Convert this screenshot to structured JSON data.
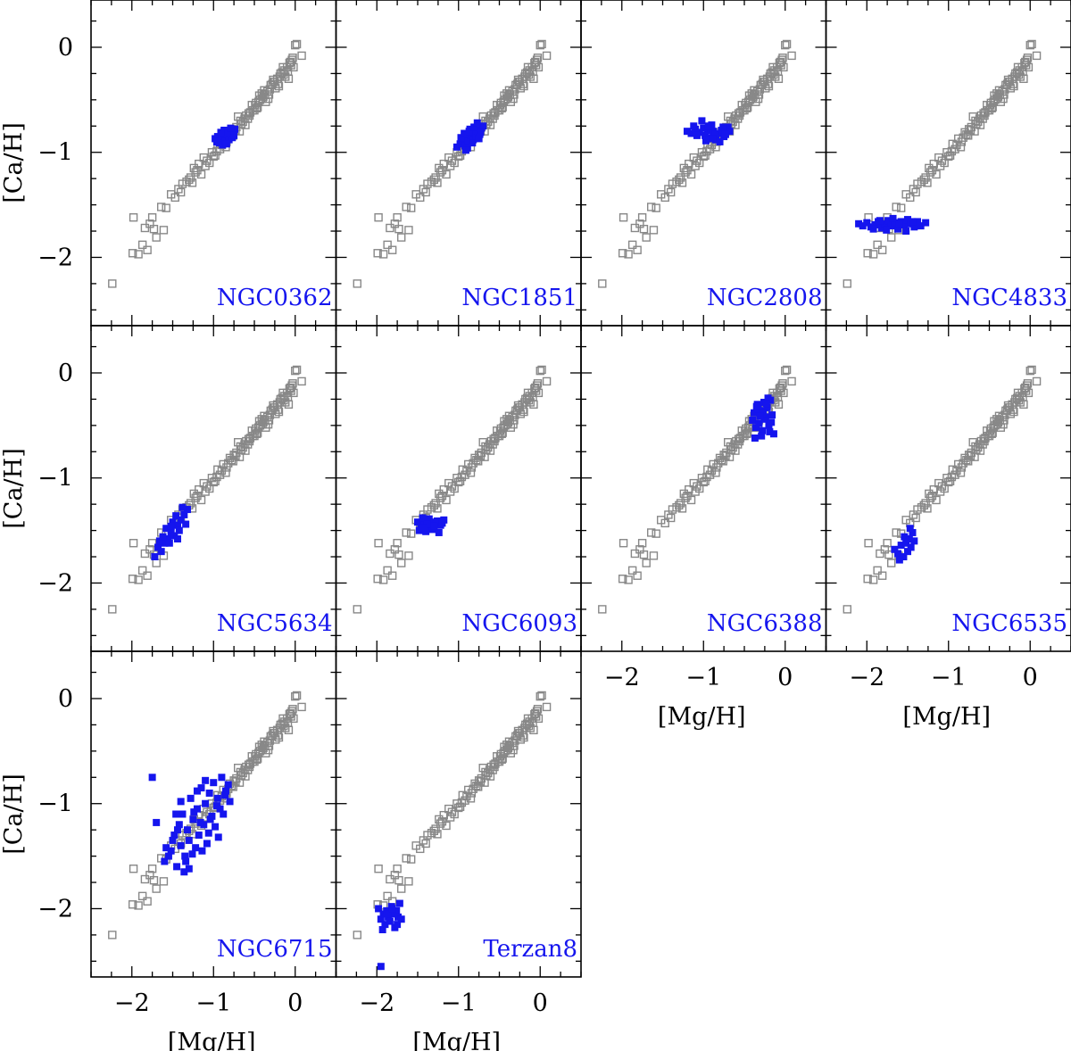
{
  "chart_data": {
    "type": "scatter",
    "layout": "grid 3 rows x 4 columns, shared axes",
    "xlabel": "[Mg/H]",
    "ylabel": "[Ca/H]",
    "xlim": [
      -2.5,
      0.5
    ],
    "ylim": [
      -2.65,
      0.45
    ],
    "xticks": [
      -2,
      -1,
      0
    ],
    "yticks": [
      0,
      -1,
      -2
    ],
    "tick_labels_x": [
      "−2",
      "−1",
      "0"
    ],
    "tick_labels_y": [
      "0",
      "−1",
      "−2"
    ],
    "colors": {
      "background": "#888888",
      "highlight": "#1515ee"
    },
    "background_series": {
      "marker": "open square",
      "x": [
        -2.24,
        -1.99,
        -1.92,
        -1.87,
        -1.81,
        -1.73,
        -1.7,
        -1.61,
        -1.78,
        -1.75,
        -1.84,
        -1.98,
        -1.64,
        -1.58,
        -1.52,
        -1.47,
        -1.43,
        -1.38,
        -1.33,
        -1.28,
        -1.24,
        -1.22,
        -1.18,
        -1.12,
        -1.08,
        -1.02,
        -0.98,
        -0.95,
        -0.92,
        -0.88,
        -0.84,
        -0.8,
        -0.76,
        -0.72,
        -0.68,
        -0.64,
        -0.61,
        -0.58,
        -0.55,
        -0.52,
        -0.49,
        -0.46,
        -0.43,
        -0.4,
        -0.37,
        -0.34,
        -0.31,
        -0.28,
        -0.25,
        -0.22,
        -0.19,
        -0.16,
        -0.13,
        -0.1,
        -0.07,
        -0.04,
        0.0,
        0.02,
        0.08,
        -1.15,
        -1.05,
        -0.9,
        -0.78,
        -0.7,
        -0.62,
        -0.5,
        -0.44,
        -0.36,
        -0.3,
        -0.24,
        -0.18,
        -0.12,
        -0.06,
        -0.02,
        -1.3,
        -1.2,
        -1.0,
        -0.85,
        -0.75,
        -0.66,
        -0.56,
        -0.47,
        -0.41,
        -0.33,
        -0.27,
        -0.21,
        -0.15,
        -0.09,
        -0.03,
        -0.6,
        -0.53,
        -0.45,
        -0.38,
        -0.32,
        -0.26,
        -0.2,
        -0.14,
        -0.08,
        -0.05,
        -1.4,
        -1.26,
        -1.1,
        -0.96,
        -0.82,
        -0.73,
        -0.67,
        -0.57,
        -0.48,
        -0.39
      ],
      "y": [
        -2.25,
        -1.96,
        -1.97,
        -1.88,
        -1.93,
        -1.73,
        -1.81,
        -1.74,
        -1.68,
        -1.62,
        -1.72,
        -1.62,
        -1.52,
        -1.53,
        -1.4,
        -1.43,
        -1.35,
        -1.3,
        -1.28,
        -1.24,
        -1.15,
        -1.19,
        -1.11,
        -1.05,
        -1.08,
        -1.0,
        -1.03,
        -0.92,
        -0.97,
        -0.87,
        -0.9,
        -0.81,
        -0.84,
        -0.76,
        -0.8,
        -0.71,
        -0.74,
        -0.68,
        -0.62,
        -0.6,
        -0.55,
        -0.57,
        -0.5,
        -0.49,
        -0.45,
        -0.42,
        -0.4,
        -0.35,
        -0.33,
        -0.3,
        -0.28,
        -0.24,
        -0.22,
        -0.19,
        -0.15,
        -0.12,
        0.02,
        0.03,
        -0.08,
        -1.21,
        -1.1,
        -0.93,
        -0.83,
        -0.66,
        -0.68,
        -0.6,
        -0.46,
        -0.52,
        -0.36,
        -0.39,
        -0.25,
        -0.28,
        -0.14,
        -0.19,
        -1.26,
        -1.17,
        -1.04,
        -0.95,
        -0.78,
        -0.73,
        -0.65,
        -0.58,
        -0.44,
        -0.49,
        -0.31,
        -0.35,
        -0.19,
        -0.23,
        -0.1,
        -0.65,
        -0.55,
        -0.52,
        -0.41,
        -0.45,
        -0.33,
        -0.37,
        -0.26,
        -0.3,
        -0.17,
        -1.38,
        -1.29,
        -1.13,
        -0.99,
        -0.86,
        -0.79,
        -0.7,
        -0.63,
        -0.53,
        -0.47
      ]
    },
    "panels": [
      {
        "label": "NGC0362",
        "x": [
          -0.98,
          -0.95,
          -0.92,
          -0.9,
          -0.88,
          -0.86,
          -0.84,
          -0.82,
          -0.8,
          -0.78,
          -0.76,
          -0.74,
          -0.93,
          -0.89,
          -0.85,
          -0.81,
          -0.77,
          -0.87,
          -0.83,
          -0.79,
          -0.91,
          -0.75,
          -0.96,
          -0.84
        ],
        "y": [
          -0.87,
          -0.85,
          -0.88,
          -0.83,
          -0.89,
          -0.84,
          -0.86,
          -0.81,
          -0.85,
          -0.8,
          -0.83,
          -0.78,
          -0.91,
          -0.93,
          -0.9,
          -0.88,
          -0.86,
          -0.79,
          -0.82,
          -0.77,
          -0.81,
          -0.84,
          -0.9,
          -0.92
        ]
      },
      {
        "label": "NGC1851",
        "x": [
          -1.02,
          -0.98,
          -0.95,
          -0.92,
          -0.9,
          -0.88,
          -0.85,
          -0.82,
          -0.8,
          -0.78,
          -0.76,
          -0.74,
          -0.72,
          -0.7,
          -0.97,
          -0.93,
          -0.89,
          -0.86,
          -0.83,
          -0.79,
          -0.75,
          -0.91,
          -0.87,
          -0.81,
          -0.77,
          -0.73
        ],
        "y": [
          -0.95,
          -0.92,
          -0.89,
          -0.94,
          -0.86,
          -0.9,
          -0.84,
          -0.88,
          -0.82,
          -0.85,
          -0.8,
          -0.83,
          -0.77,
          -0.75,
          -0.86,
          -0.82,
          -0.96,
          -0.78,
          -0.91,
          -0.79,
          -0.87,
          -0.98,
          -0.8,
          -0.76,
          -0.72,
          -0.81
        ]
      },
      {
        "label": "NGC2808",
        "x": [
          -1.2,
          -1.15,
          -1.1,
          -1.05,
          -1.02,
          -0.98,
          -0.95,
          -0.92,
          -0.88,
          -0.85,
          -0.82,
          -0.78,
          -0.75,
          -0.72,
          -0.7,
          -0.68,
          -1.12,
          -1.08,
          -1.0,
          -0.97,
          -0.9,
          -0.86,
          -0.8,
          -0.76,
          -0.73,
          -0.94,
          -0.89
        ],
        "y": [
          -0.8,
          -0.82,
          -0.78,
          -0.81,
          -0.7,
          -0.84,
          -0.79,
          -0.86,
          -0.8,
          -0.88,
          -0.82,
          -0.79,
          -0.85,
          -0.78,
          -0.76,
          -0.8,
          -0.75,
          -0.84,
          -0.77,
          -0.89,
          -0.74,
          -0.83,
          -0.9,
          -0.76,
          -0.83,
          -0.75,
          -0.87
        ]
      },
      {
        "label": "NGC4833",
        "x": [
          -2.1,
          -2.05,
          -2.0,
          -1.95,
          -1.9,
          -1.86,
          -1.82,
          -1.78,
          -1.74,
          -1.7,
          -1.66,
          -1.62,
          -1.58,
          -1.54,
          -1.5,
          -1.46,
          -1.42,
          -1.38,
          -1.34,
          -1.28,
          -1.92,
          -1.84,
          -1.76,
          -1.68,
          -1.6,
          -1.52,
          -1.44
        ],
        "y": [
          -1.68,
          -1.7,
          -1.67,
          -1.71,
          -1.69,
          -1.66,
          -1.72,
          -1.68,
          -1.65,
          -1.7,
          -1.67,
          -1.73,
          -1.66,
          -1.69,
          -1.64,
          -1.68,
          -1.71,
          -1.66,
          -1.7,
          -1.67,
          -1.73,
          -1.65,
          -1.74,
          -1.63,
          -1.69,
          -1.75,
          -1.66
        ]
      },
      {
        "label": "NGC5634",
        "x": [
          -1.72,
          -1.68,
          -1.64,
          -1.6,
          -1.56,
          -1.52,
          -1.48,
          -1.44,
          -1.4,
          -1.36,
          -1.32,
          -1.66,
          -1.58,
          -1.5,
          -1.42,
          -1.38,
          -1.54,
          -1.46,
          -1.62,
          -1.34,
          -1.44,
          -1.52
        ],
        "y": [
          -1.75,
          -1.66,
          -1.7,
          -1.62,
          -1.58,
          -1.52,
          -1.55,
          -1.45,
          -1.4,
          -1.35,
          -1.3,
          -1.6,
          -1.48,
          -1.42,
          -1.5,
          -1.28,
          -1.62,
          -1.36,
          -1.56,
          -1.44,
          -1.58,
          -1.46
        ]
      },
      {
        "label": "NGC6093",
        "x": [
          -1.5,
          -1.46,
          -1.42,
          -1.38,
          -1.34,
          -1.3,
          -1.26,
          -1.22,
          -1.18,
          -1.48,
          -1.44,
          -1.4,
          -1.36,
          -1.32,
          -1.28,
          -1.24,
          -1.2,
          -1.38,
          -1.3,
          -1.43
        ],
        "y": [
          -1.42,
          -1.46,
          -1.43,
          -1.48,
          -1.44,
          -1.47,
          -1.41,
          -1.45,
          -1.4,
          -1.5,
          -1.38,
          -1.51,
          -1.39,
          -1.49,
          -1.42,
          -1.52,
          -1.43,
          -1.44,
          -1.46,
          -1.47
        ]
      },
      {
        "label": "NGC6388",
        "x": [
          -0.4,
          -0.38,
          -0.36,
          -0.34,
          -0.32,
          -0.3,
          -0.28,
          -0.26,
          -0.24,
          -0.22,
          -0.2,
          -0.18,
          -0.16,
          -0.14,
          -0.37,
          -0.33,
          -0.29,
          -0.25,
          -0.21,
          -0.17,
          -0.35,
          -0.27,
          -0.19,
          -0.31,
          -0.23
        ],
        "y": [
          -0.45,
          -0.38,
          -0.52,
          -0.3,
          -0.48,
          -0.36,
          -0.55,
          -0.28,
          -0.42,
          -0.33,
          -0.5,
          -0.26,
          -0.4,
          -0.58,
          -0.62,
          -0.34,
          -0.6,
          -0.44,
          -0.24,
          -0.47,
          -0.32,
          -0.39,
          -0.56,
          -0.41,
          -0.29
        ]
      },
      {
        "label": "NGC6535",
        "x": [
          -1.66,
          -1.62,
          -1.58,
          -1.55,
          -1.52,
          -1.5,
          -1.48,
          -1.46,
          -1.44,
          -1.42,
          -1.6,
          -1.54,
          -1.47
        ],
        "y": [
          -1.68,
          -1.72,
          -1.64,
          -1.75,
          -1.62,
          -1.7,
          -1.58,
          -1.66,
          -1.52,
          -1.6,
          -1.78,
          -1.56,
          -1.48
        ]
      },
      {
        "label": "NGC6715",
        "x": [
          -1.75,
          -1.6,
          -1.52,
          -1.48,
          -1.45,
          -1.42,
          -1.4,
          -1.38,
          -1.35,
          -1.32,
          -1.3,
          -1.28,
          -1.25,
          -1.22,
          -1.2,
          -1.18,
          -1.15,
          -1.12,
          -1.1,
          -1.08,
          -1.05,
          -1.02,
          -1.0,
          -0.98,
          -0.95,
          -0.92,
          -0.9,
          -0.88,
          -0.85,
          -0.82,
          -1.55,
          -1.5,
          -1.44,
          -1.36,
          -1.26,
          -1.16,
          -1.06,
          -0.96,
          -0.86,
          -1.58,
          -1.4,
          -1.34,
          -1.24,
          -1.14,
          -1.04,
          -0.94,
          -1.46,
          -1.3,
          -1.2,
          -1.1,
          -0.8,
          -1.7
        ],
        "y": [
          -0.75,
          -1.55,
          -1.45,
          -1.3,
          -1.6,
          -1.2,
          -1.4,
          -1.1,
          -1.5,
          -1.25,
          -1.35,
          -0.95,
          -1.15,
          -1.42,
          -1.05,
          -1.3,
          -0.85,
          -1.2,
          -1.0,
          -1.38,
          -0.9,
          -1.12,
          -0.8,
          -1.22,
          -0.95,
          -1.05,
          -0.75,
          -1.1,
          -0.88,
          -0.82,
          -1.5,
          -1.35,
          -1.25,
          -1.65,
          -1.48,
          -1.18,
          -1.28,
          -1.02,
          -0.92,
          -1.42,
          -0.98,
          -1.55,
          -1.08,
          -1.45,
          -1.15,
          -1.32,
          -1.1,
          -1.62,
          -0.88,
          -0.78,
          -0.98,
          -1.18
        ]
      },
      {
        "label": "Terzan8",
        "x": [
          -1.98,
          -1.95,
          -1.92,
          -1.9,
          -1.88,
          -1.86,
          -1.84,
          -1.82,
          -1.8,
          -1.78,
          -1.76,
          -1.74,
          -1.72,
          -1.7,
          -1.93,
          -1.87,
          -1.81,
          -1.75,
          -1.95
        ],
        "y": [
          -2.0,
          -2.1,
          -2.05,
          -2.15,
          -2.02,
          -2.08,
          -2.12,
          -1.98,
          -2.05,
          -2.18,
          -2.02,
          -2.08,
          -1.95,
          -2.1,
          -2.2,
          -2.05,
          -2.0,
          -2.15,
          -2.55
        ]
      }
    ]
  }
}
